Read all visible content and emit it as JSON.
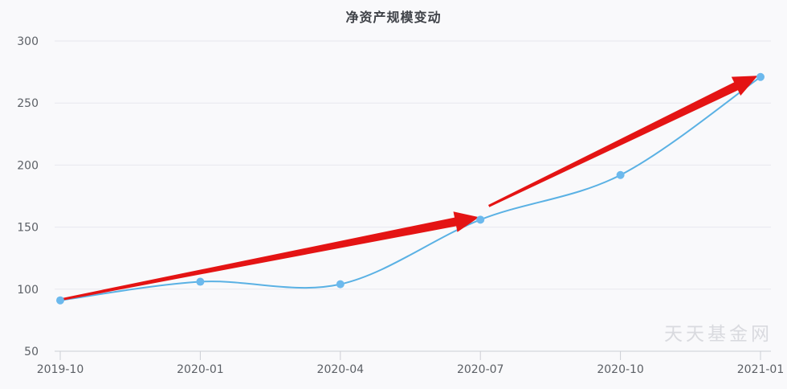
{
  "page": {
    "background": "#f9f9fb"
  },
  "chart_data": {
    "type": "line",
    "title": "净资产规模变动",
    "categories": [
      "2019-10",
      "2020-01",
      "2020-04",
      "2020-07",
      "2020-10",
      "2021-01"
    ],
    "series": [
      {
        "values": [
          91,
          106,
          104,
          156,
          192,
          271
        ]
      }
    ],
    "xlabel": "",
    "ylabel": "",
    "ylim": [
      50,
      300
    ],
    "yticks": [
      50,
      100,
      150,
      200,
      250,
      300
    ],
    "grid": true,
    "legend_position": "none",
    "smooth": true,
    "line_color": "#5ab1e4",
    "marker_color": "#6cb9ed",
    "grid_color": "#e8e8ee",
    "axis_color": "#ccced4",
    "annotations": [
      {
        "type": "arrow",
        "color": "#e41414",
        "from": {
          "x": 0.02,
          "y": 92
        },
        "to": {
          "x": 2.99,
          "y": 158
        }
      },
      {
        "type": "arrow",
        "color": "#e41414",
        "from": {
          "x": 3.06,
          "y": 167
        },
        "to": {
          "x": 4.98,
          "y": 272
        }
      }
    ]
  },
  "watermark": {
    "text": "天天基金网",
    "color": "#d9dadf"
  }
}
